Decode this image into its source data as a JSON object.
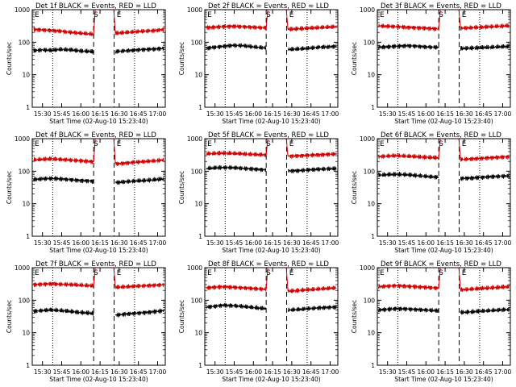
{
  "figure": {
    "colors": {
      "events": "#000000",
      "lld": "#d00000",
      "axes": "#000000"
    },
    "x_tick_labels": [
      "15:30",
      "15:45",
      "16:00",
      "16:15",
      "16:30",
      "16:45",
      "17:00"
    ],
    "x_label": "Start Time (02-Aug-10 15:23:40)",
    "y_label": "Counts/sec",
    "y_tick_labels": [
      "1",
      "10",
      "100",
      "1000"
    ],
    "markers": [
      "E",
      "S",
      "E"
    ]
  },
  "chart_data": [
    {
      "type": "line",
      "title": "Det 1f BLACK = Events, RED = LLD",
      "xlabel": "Start Time (02-Aug-10 15:23:40)",
      "ylabel": "Counts/sec",
      "scale": "log",
      "ylim": [
        1,
        1000
      ],
      "x_ticks": [
        "15:30",
        "15:45",
        "16:00",
        "16:15",
        "16:30",
        "16:45",
        "17:00"
      ],
      "series": [
        {
          "name": "Events",
          "values": [
            55,
            58,
            56,
            60,
            58,
            54,
            52,
            50,
            48,
            52,
            55,
            58,
            60,
            62,
            65
          ]
        },
        {
          "name": "LLD",
          "values": [
            250,
            240,
            230,
            220,
            200,
            190,
            180,
            170,
            180,
            190,
            200,
            210,
            220,
            230,
            250
          ]
        }
      ]
    },
    {
      "type": "line",
      "title": "Det 2f BLACK = Events, RED = LLD",
      "xlabel": "Start Time (02-Aug-10 15:23:40)",
      "ylabel": "Counts/sec",
      "scale": "log",
      "ylim": [
        1,
        1000
      ],
      "x_ticks": [
        "15:30",
        "15:45",
        "16:00",
        "16:15",
        "16:30",
        "16:45",
        "17:00"
      ],
      "series": [
        {
          "name": "Events",
          "values": [
            65,
            70,
            75,
            80,
            78,
            72,
            68,
            65,
            62,
            60,
            62,
            65,
            70,
            72,
            75
          ]
        },
        {
          "name": "LLD",
          "values": [
            280,
            290,
            300,
            310,
            300,
            290,
            280,
            270,
            260,
            250,
            260,
            270,
            280,
            290,
            300
          ]
        }
      ]
    },
    {
      "type": "line",
      "title": "Det 3f BLACK = Events, RED = LLD",
      "xlabel": "Start Time (02-Aug-10 15:23:40)",
      "ylabel": "Counts/sec",
      "scale": "log",
      "ylim": [
        1,
        1000
      ],
      "x_ticks": [
        "15:30",
        "15:45",
        "16:00",
        "16:15",
        "16:30",
        "16:45",
        "17:00"
      ],
      "series": [
        {
          "name": "Events",
          "values": [
            70,
            72,
            75,
            78,
            76,
            72,
            70,
            68,
            66,
            64,
            66,
            68,
            70,
            72,
            74
          ]
        },
        {
          "name": "LLD",
          "values": [
            320,
            310,
            300,
            290,
            280,
            270,
            260,
            250,
            260,
            270,
            280,
            290,
            300,
            310,
            320
          ]
        }
      ]
    },
    {
      "type": "line",
      "title": "Det 4f BLACK = Events, RED = LLD",
      "xlabel": "Start Time (02-Aug-10 15:23:40)",
      "ylabel": "Counts/sec",
      "scale": "log",
      "ylim": [
        1,
        1000
      ],
      "x_ticks": [
        "15:30",
        "15:45",
        "16:00",
        "16:15",
        "16:30",
        "16:45",
        "17:00"
      ],
      "series": [
        {
          "name": "Events",
          "values": [
            55,
            58,
            60,
            58,
            55,
            52,
            50,
            48,
            46,
            45,
            48,
            50,
            52,
            55,
            58
          ]
        },
        {
          "name": "LLD",
          "values": [
            220,
            230,
            240,
            230,
            220,
            210,
            200,
            190,
            180,
            170,
            180,
            190,
            200,
            210,
            220
          ]
        }
      ]
    },
    {
      "type": "line",
      "title": "Det 5f BLACK = Events, RED = LLD",
      "xlabel": "Start Time (02-Aug-10 15:23:40)",
      "ylabel": "Counts/sec",
      "scale": "log",
      "ylim": [
        1,
        1000
      ],
      "x_ticks": [
        "15:30",
        "15:45",
        "16:00",
        "16:15",
        "16:30",
        "16:45",
        "17:00"
      ],
      "series": [
        {
          "name": "Events",
          "values": [
            120,
            125,
            130,
            128,
            122,
            118,
            112,
            108,
            105,
            102,
            105,
            110,
            115,
            118,
            120
          ]
        },
        {
          "name": "LLD",
          "values": [
            340,
            350,
            360,
            350,
            340,
            330,
            320,
            310,
            300,
            290,
            300,
            310,
            320,
            330,
            340
          ]
        }
      ]
    },
    {
      "type": "line",
      "title": "Det 6f BLACK = Events, RED = LLD",
      "xlabel": "Start Time (02-Aug-10 15:23:40)",
      "ylabel": "Counts/sec",
      "scale": "log",
      "ylim": [
        1,
        1000
      ],
      "x_ticks": [
        "15:30",
        "15:45",
        "16:00",
        "16:15",
        "16:30",
        "16:45",
        "17:00"
      ],
      "series": [
        {
          "name": "Events",
          "values": [
            75,
            78,
            80,
            78,
            74,
            70,
            66,
            64,
            62,
            60,
            62,
            65,
            68,
            70,
            72
          ]
        },
        {
          "name": "LLD",
          "values": [
            280,
            290,
            300,
            290,
            280,
            270,
            260,
            250,
            240,
            230,
            240,
            250,
            260,
            270,
            280
          ]
        }
      ]
    },
    {
      "type": "line",
      "title": "Det 7f BLACK = Events, RED = LLD",
      "xlabel": "Start Time (02-Aug-10 15:23:40)",
      "ylabel": "Counts/sec",
      "scale": "log",
      "ylim": [
        1,
        1000
      ],
      "x_ticks": [
        "15:30",
        "15:45",
        "16:00",
        "16:15",
        "16:30",
        "16:45",
        "17:00"
      ],
      "series": [
        {
          "name": "Events",
          "values": [
            45,
            48,
            50,
            48,
            45,
            42,
            40,
            38,
            36,
            35,
            38,
            40,
            42,
            45,
            48
          ]
        },
        {
          "name": "LLD",
          "values": [
            300,
            310,
            320,
            310,
            300,
            290,
            280,
            270,
            260,
            250,
            260,
            270,
            280,
            290,
            300
          ]
        }
      ]
    },
    {
      "type": "line",
      "title": "Det 8f BLACK = Events, RED = LLD",
      "xlabel": "Start Time (02-Aug-10 15:23:40)",
      "ylabel": "Counts/sec",
      "scale": "log",
      "ylim": [
        1,
        1000
      ],
      "x_ticks": [
        "15:30",
        "15:45",
        "16:00",
        "16:15",
        "16:30",
        "16:45",
        "17:00"
      ],
      "series": [
        {
          "name": "Events",
          "values": [
            60,
            65,
            70,
            68,
            64,
            60,
            56,
            54,
            52,
            50,
            52,
            55,
            58,
            60,
            62
          ]
        },
        {
          "name": "LLD",
          "values": [
            240,
            250,
            260,
            250,
            240,
            230,
            220,
            210,
            200,
            190,
            200,
            210,
            220,
            230,
            240
          ]
        }
      ]
    },
    {
      "type": "line",
      "title": "Det 9f BLACK = Events, RED = LLD",
      "xlabel": "Start Time (02-Aug-10 15:23:40)",
      "ylabel": "Counts/sec",
      "scale": "log",
      "ylim": [
        1,
        1000
      ],
      "x_ticks": [
        "15:30",
        "15:45",
        "16:00",
        "16:15",
        "16:30",
        "16:45",
        "17:00"
      ],
      "series": [
        {
          "name": "Events",
          "values": [
            50,
            52,
            55,
            54,
            52,
            50,
            48,
            46,
            44,
            42,
            44,
            46,
            48,
            50,
            52
          ]
        },
        {
          "name": "LLD",
          "values": [
            260,
            270,
            280,
            270,
            260,
            250,
            240,
            230,
            220,
            210,
            220,
            230,
            240,
            250,
            260
          ]
        }
      ]
    }
  ]
}
